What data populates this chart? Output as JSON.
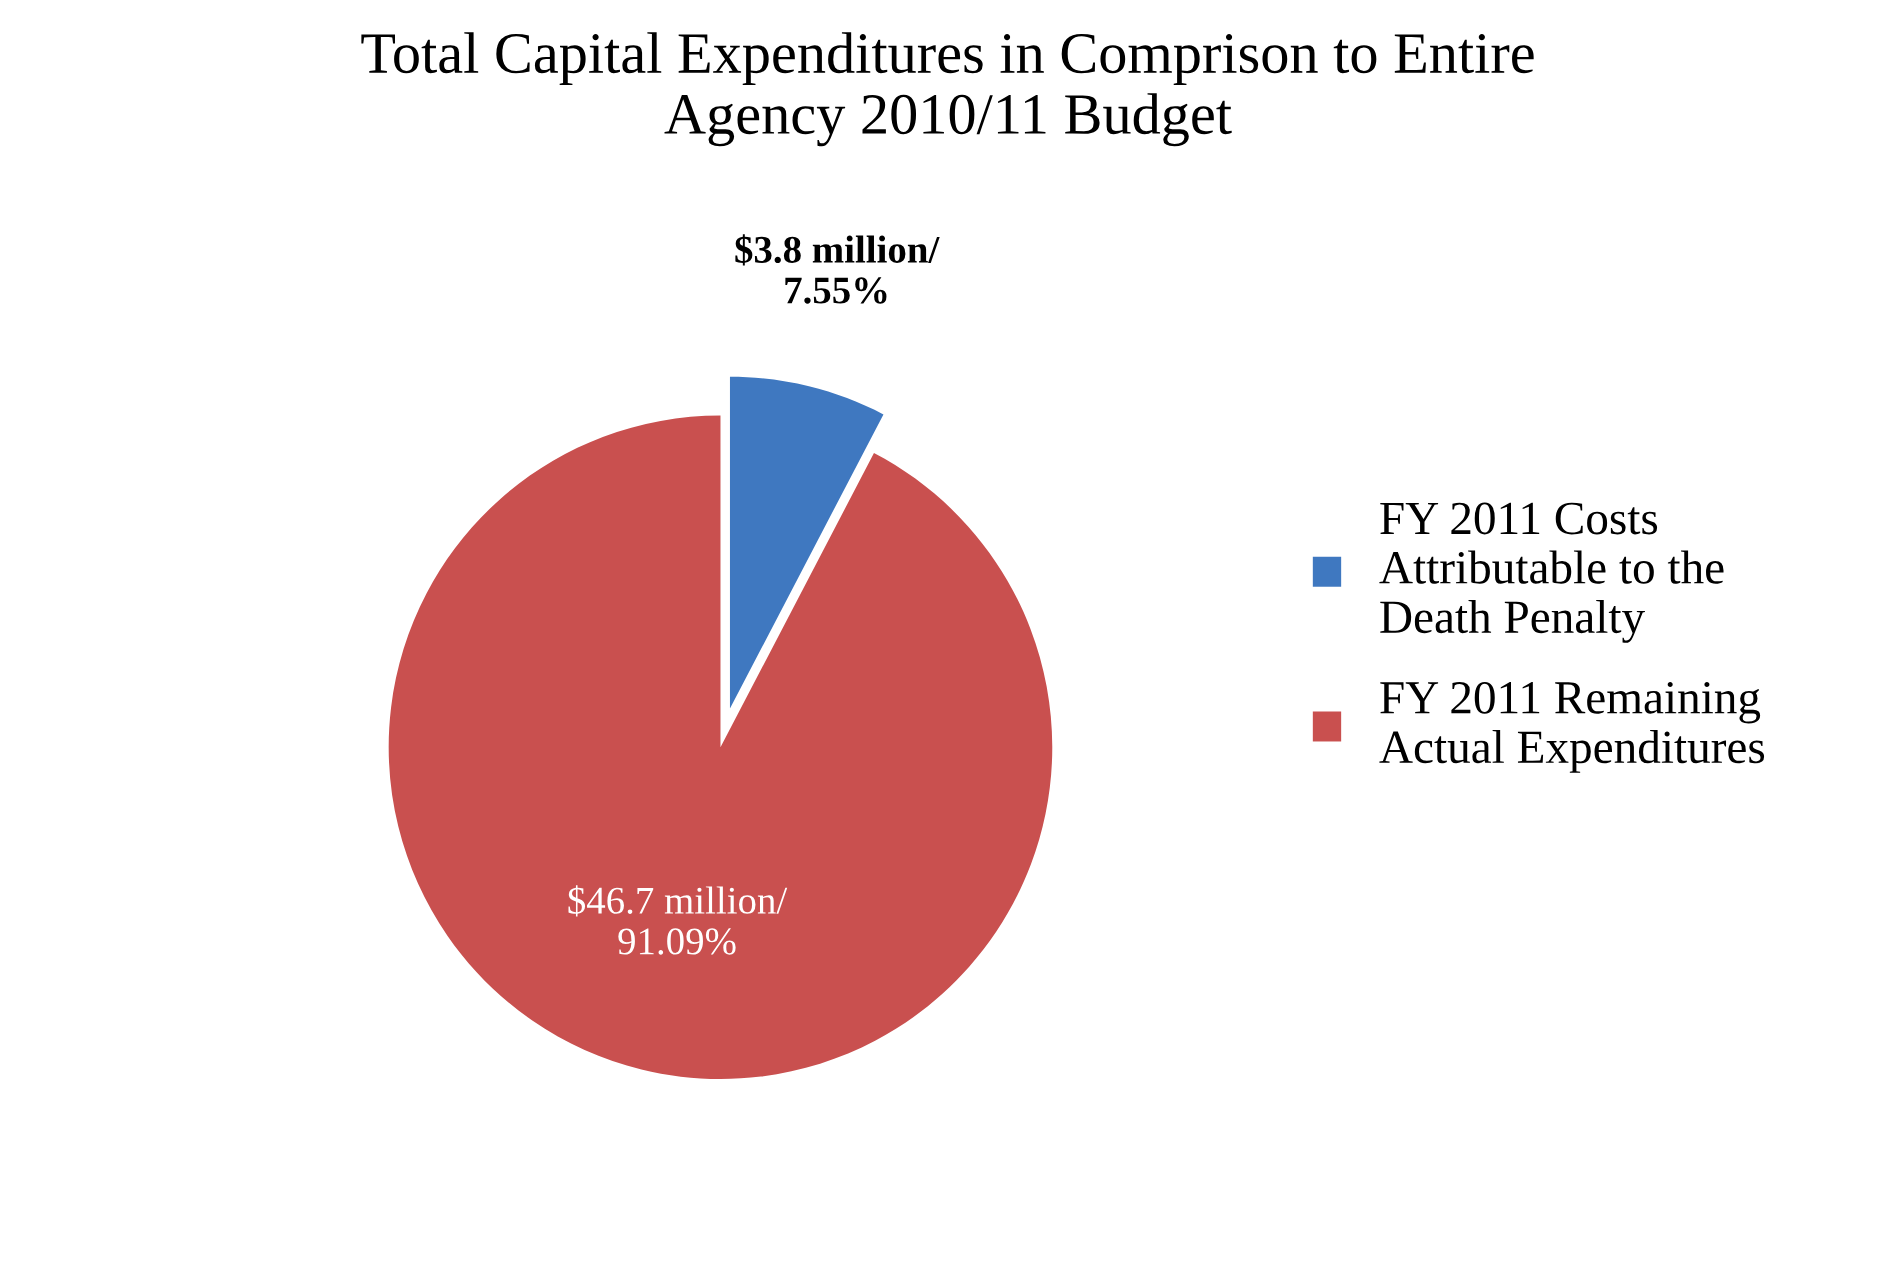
{
  "chart_data": {
    "type": "pie",
    "title": "Total Capital Expenditures in Comprison to Entire\nAgency 2010/11 Budget",
    "categories": [
      "FY 2011 Costs\nAttributable to the\nDeath Penalty",
      "FY 2011 Remaining\nActual Expenditures"
    ],
    "values": [
      7.55,
      91.09
    ],
    "value_labels": [
      "$3.8 million/\n7.55%",
      "$46.7 million/\n91.09%"
    ],
    "colors": [
      "#3f78c0",
      "#c9504f"
    ],
    "legend": "right"
  }
}
